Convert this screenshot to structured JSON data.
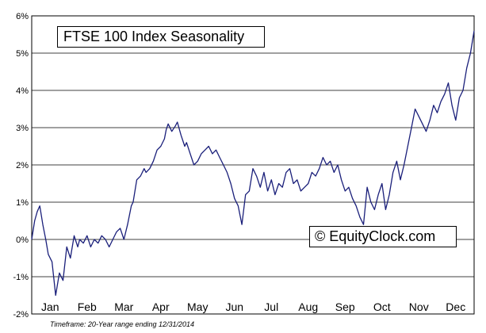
{
  "chart_data": {
    "type": "line",
    "title": "FTSE 100 Index Seasonality",
    "watermark": "© EquityClock.com",
    "footnote": "Timeframe: 20-Year range ending 12/31/2014",
    "xlabel": "",
    "ylabel": "",
    "ylim": [
      -2,
      6
    ],
    "y_ticks": [
      "-2%",
      "-1%",
      "0%",
      "1%",
      "2%",
      "3%",
      "4%",
      "5%",
      "6%"
    ],
    "x_ticks": [
      "Jan",
      "Feb",
      "Mar",
      "Apr",
      "May",
      "Jun",
      "Jul",
      "Aug",
      "Sep",
      "Oct",
      "Nov",
      "Dec"
    ],
    "x_unit": "month (0 = Jan 1, 12 = Dec 31)",
    "grid": true,
    "series": [
      {
        "name": "FTSE 100 seasonal average",
        "color": "#1a1f7a",
        "x": [
          0,
          0.08,
          0.15,
          0.22,
          0.3,
          0.38,
          0.45,
          0.55,
          0.65,
          0.75,
          0.85,
          0.95,
          1.05,
          1.15,
          1.25,
          1.3,
          1.4,
          1.5,
          1.6,
          1.7,
          1.8,
          1.9,
          2.0,
          2.1,
          2.2,
          2.3,
          2.4,
          2.5,
          2.6,
          2.7,
          2.75,
          2.85,
          2.95,
          3.05,
          3.1,
          3.2,
          3.3,
          3.4,
          3.5,
          3.6,
          3.65,
          3.7,
          3.8,
          3.9,
          3.95,
          4.05,
          4.15,
          4.2,
          4.3,
          4.4,
          4.5,
          4.6,
          4.7,
          4.8,
          4.9,
          5.0,
          5.1,
          5.2,
          5.3,
          5.4,
          5.5,
          5.6,
          5.7,
          5.8,
          5.9,
          6.0,
          6.1,
          6.2,
          6.3,
          6.4,
          6.5,
          6.6,
          6.7,
          6.8,
          6.9,
          7.0,
          7.1,
          7.2,
          7.3,
          7.4,
          7.5,
          7.6,
          7.7,
          7.8,
          7.9,
          8.0,
          8.1,
          8.2,
          8.3,
          8.4,
          8.5,
          8.6,
          8.7,
          8.8,
          8.9,
          9.0,
          9.1,
          9.2,
          9.3,
          9.4,
          9.5,
          9.6,
          9.7,
          9.8,
          9.9,
          10.0,
          10.1,
          10.2,
          10.3,
          10.4,
          10.5,
          10.6,
          10.7,
          10.8,
          10.9,
          11.0,
          11.1,
          11.2,
          11.3,
          11.4,
          11.5,
          11.6,
          11.7,
          11.8,
          11.9,
          12.0
        ],
        "y": [
          0.0,
          0.5,
          0.75,
          0.9,
          0.4,
          0.0,
          -0.4,
          -0.6,
          -1.5,
          -0.9,
          -1.1,
          -0.2,
          -0.5,
          0.1,
          -0.2,
          0.0,
          -0.1,
          0.1,
          -0.2,
          0.0,
          -0.1,
          0.1,
          0.0,
          -0.2,
          0.0,
          0.2,
          0.3,
          0.0,
          0.4,
          0.9,
          1.0,
          1.6,
          1.7,
          1.9,
          1.8,
          1.9,
          2.1,
          2.4,
          2.5,
          2.7,
          2.95,
          3.1,
          2.9,
          3.05,
          3.15,
          2.8,
          2.5,
          2.6,
          2.3,
          2.0,
          2.1,
          2.3,
          2.4,
          2.5,
          2.3,
          2.4,
          2.2,
          2.0,
          1.8,
          1.5,
          1.1,
          0.9,
          0.4,
          1.2,
          1.3,
          1.9,
          1.7,
          1.4,
          1.8,
          1.3,
          1.6,
          1.2,
          1.5,
          1.4,
          1.8,
          1.9,
          1.5,
          1.6,
          1.3,
          1.4,
          1.5,
          1.8,
          1.7,
          1.9,
          2.2,
          2.0,
          2.1,
          1.8,
          2.0,
          1.6,
          1.3,
          1.4,
          1.1,
          0.9,
          0.6,
          0.4,
          1.4,
          1.0,
          0.8,
          1.2,
          1.5,
          0.8,
          1.2,
          1.8,
          2.1,
          1.6,
          2.0,
          2.5,
          3.0,
          3.5,
          3.3,
          3.1,
          2.9,
          3.2,
          3.6,
          3.4,
          3.7,
          3.9,
          4.2,
          3.6,
          3.2,
          3.8,
          4.0,
          4.6,
          5.0,
          5.6
        ]
      }
    ]
  }
}
